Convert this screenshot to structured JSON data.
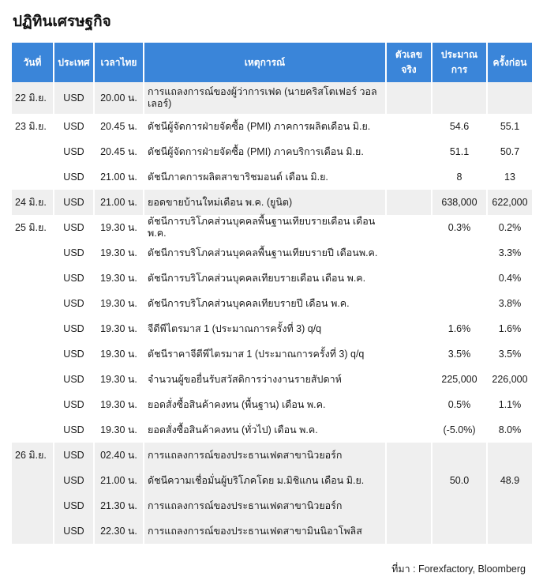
{
  "title": "ปฏิทินเศรษฐกิจ",
  "columns": [
    "วันที่",
    "ประเทศ",
    "เวลาไทย",
    "เหตุการณ์",
    "ตัวเลขจริง",
    "ประมาณการ",
    "ครั้งก่อน"
  ],
  "rows": [
    {
      "date": "22 มิ.ย.",
      "country": "USD",
      "time": "20.00 น.",
      "event": "การแถลงการณ์ของผู้ว่าการเฟด (นายคริสโตเฟอร์ วอลเลอร์)",
      "actual": "",
      "forecast": "",
      "previous": ""
    },
    {
      "date": "23 มิ.ย.",
      "country": "USD",
      "time": "20.45 น.",
      "event": "ดัชนีผู้จัดการฝ่ายจัดซื้อ (PMI) ภาคการผลิตเดือน มิ.ย.",
      "actual": "",
      "forecast": "54.6",
      "previous": "55.1"
    },
    {
      "date": "",
      "country": "USD",
      "time": "20.45 น.",
      "event": "ดัชนีผู้จัดการฝ่ายจัดซื้อ (PMI) ภาคบริการเดือน มิ.ย.",
      "actual": "",
      "forecast": "51.1",
      "previous": "50.7"
    },
    {
      "date": "",
      "country": "USD",
      "time": "21.00 น.",
      "event": "ดัชนีภาคการผลิตสาขาริชมอนด์ เดือน มิ.ย.",
      "actual": "",
      "forecast": "8",
      "previous": "13"
    },
    {
      "date": "24 มิ.ย.",
      "country": "USD",
      "time": "21.00 น.",
      "event": "ยอดขายบ้านใหม่เดือน พ.ค. (ยูนิต)",
      "actual": "",
      "forecast": "638,000",
      "previous": "622,000"
    },
    {
      "date": "25 มิ.ย.",
      "country": "USD",
      "time": "19.30 น.",
      "event": "ดัชนีการบริโภคส่วนบุคคลพื้นฐานเทียบรายเดือน เดือน พ.ค.",
      "actual": "",
      "forecast": "0.3%",
      "previous": "0.2%"
    },
    {
      "date": "",
      "country": "USD",
      "time": "19.30 น.",
      "event": "ดัชนีการบริโภคส่วนบุคคลพื้นฐานเทียบรายปี เดือนพ.ค.",
      "actual": "",
      "forecast": "",
      "previous": "3.3%"
    },
    {
      "date": "",
      "country": "USD",
      "time": "19.30 น.",
      "event": "ดัชนีการบริโภคส่วนบุคคลเทียบรายเดือน เดือน พ.ค.",
      "actual": "",
      "forecast": "",
      "previous": "0.4%"
    },
    {
      "date": "",
      "country": "USD",
      "time": "19.30 น.",
      "event": "ดัชนีการบริโภคส่วนบุคคลเทียบรายปี เดือน พ.ค.",
      "actual": "",
      "forecast": "",
      "previous": "3.8%"
    },
    {
      "date": "",
      "country": "USD",
      "time": "19.30 น.",
      "event": "จีดีพีไตรมาส 1 (ประมาณการครั้งที่ 3) q/q",
      "actual": "",
      "forecast": "1.6%",
      "previous": "1.6%"
    },
    {
      "date": "",
      "country": "USD",
      "time": "19.30 น.",
      "event": "ดัชนีราคาจีดีพีไตรมาส 1 (ประมาณการครั้งที่ 3) q/q",
      "actual": "",
      "forecast": "3.5%",
      "previous": "3.5%"
    },
    {
      "date": "",
      "country": "USD",
      "time": "19.30 น.",
      "event": "จำนวนผู้ขอยื่นรับสวัสดิการว่างงานรายสัปดาห์",
      "actual": "",
      "forecast": "225,000",
      "previous": "226,000"
    },
    {
      "date": "",
      "country": "USD",
      "time": "19.30 น.",
      "event": "ยอดสั่งซื้อสินค้าคงทน (พื้นฐาน) เดือน พ.ค.",
      "actual": "",
      "forecast": "0.5%",
      "previous": "1.1%"
    },
    {
      "date": "",
      "country": "USD",
      "time": "19.30 น.",
      "event": "ยอดสั่งซื้อสินค้าคงทน (ทั่วไป) เดือน พ.ค.",
      "actual": "",
      "forecast": "(-5.0%)",
      "previous": "8.0%"
    },
    {
      "date": "26 มิ.ย.",
      "country": "USD",
      "time": "02.40 น.",
      "event": "การแถลงการณ์ของประธานเฟดสาขานิวยอร์ก",
      "actual": "",
      "forecast": "",
      "previous": ""
    },
    {
      "date": "",
      "country": "USD",
      "time": "21.00 น.",
      "event": "ดัชนีความเชื่อมั่นผู้บริโภคโดย ม.มิชิแกน เดือน มิ.ย.",
      "actual": "",
      "forecast": "50.0",
      "previous": "48.9"
    },
    {
      "date": "",
      "country": "USD",
      "time": "21.30 น.",
      "event": "การแถลงการณ์ของประธานเฟดสาขานิวยอร์ก",
      "actual": "",
      "forecast": "",
      "previous": ""
    },
    {
      "date": "",
      "country": "USD",
      "time": "22.30 น.",
      "event": "การแถลงการณ์ของประธานเฟดสาขามินนิอาโพลิส",
      "actual": "",
      "forecast": "",
      "previous": ""
    }
  ],
  "source": "ที่มา : Forexfactory, Bloomberg",
  "colors": {
    "header": "#3a85d9",
    "band": "#efefef"
  }
}
